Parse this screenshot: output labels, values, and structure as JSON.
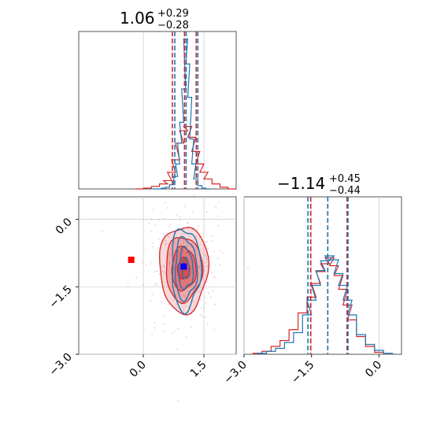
{
  "chart_data": {
    "type": "corner",
    "colors": {
      "series_a": "#1f77b4",
      "series_b": "#d62728",
      "marker_truth": "#0000ff",
      "marker_other": "#ff0000"
    },
    "series": [
      {
        "name": "",
        "color": "#1f77b4"
      },
      {
        "name": "",
        "color": "#d62728"
      }
    ],
    "panels": [
      {
        "id": "marginal-x",
        "type": "histogram",
        "title": {
          "main": "1.06",
          "sup": "+0.29",
          "sub": "−0.28"
        },
        "xlim": [
          -1.6,
          2.3
        ],
        "grid": true,
        "quantile_lines": {
          "series_a": [
            0.78,
            1.06,
            1.35
          ],
          "series_b": [
            0.72,
            1.02,
            1.31
          ]
        },
        "hist_series_a": {
          "x": [
            0.3,
            0.4,
            0.5,
            0.6,
            0.7,
            0.8,
            0.85,
            0.9,
            0.95,
            1.0,
            1.05,
            1.1,
            1.15,
            1.2,
            1.25,
            1.3,
            1.4,
            1.5,
            1.6
          ],
          "y": [
            0,
            0,
            1,
            2,
            5,
            15,
            30,
            55,
            80,
            120,
            180,
            150,
            110,
            60,
            30,
            12,
            4,
            1,
            0
          ]
        },
        "hist_series_b": {
          "x": [
            -0.1,
            0.1,
            0.3,
            0.5,
            0.6,
            0.7,
            0.8,
            0.9,
            1.0,
            1.1,
            1.2,
            1.3,
            1.4,
            1.5,
            1.6,
            1.8,
            2.0,
            2.2
          ],
          "y": [
            0,
            1,
            3,
            6,
            10,
            20,
            35,
            55,
            70,
            75,
            62,
            45,
            30,
            20,
            12,
            6,
            2,
            0
          ]
        }
      },
      {
        "id": "joint",
        "type": "contour",
        "xlim": [
          -1.6,
          2.3
        ],
        "ylim": [
          -3.0,
          0.5
        ],
        "xticks": [
          "0.0",
          "1.5"
        ],
        "yticks": [
          "0.0",
          "−1.5",
          "−3.0"
        ],
        "grid": true,
        "marker_truth": {
          "x": 1.0,
          "y": -1.05
        },
        "marker_other": {
          "x": -0.3,
          "y": -0.9
        },
        "contour_series_a": {
          "center_x": 1.05,
          "center_y": -1.1,
          "sd_x": 0.18,
          "sd_y": 0.45
        },
        "contour_series_b": {
          "center_x": 1.0,
          "center_y": -1.1,
          "sd_x": 0.3,
          "sd_y": 0.48
        }
      },
      {
        "id": "marginal-y",
        "type": "histogram",
        "title": {
          "main": "−1.14",
          "sup": "+0.45",
          "sub": "−0.44"
        },
        "xlim": [
          -3.0,
          0.5
        ],
        "xticks": [
          "−3.0",
          "−1.5",
          "0.0"
        ],
        "grid": true,
        "quantile_lines": {
          "series_a": [
            -1.58,
            -1.14,
            -0.69
          ],
          "series_b": [
            -1.52,
            -1.14,
            -0.71
          ]
        },
        "hist_series_a": {
          "x": [
            -2.6,
            -2.4,
            -2.2,
            -2.0,
            -1.8,
            -1.6,
            -1.5,
            -1.4,
            -1.3,
            -1.2,
            -1.1,
            -1.0,
            -0.9,
            -0.8,
            -0.7,
            -0.6,
            -0.4,
            -0.2,
            0.0,
            0.2
          ],
          "y": [
            1,
            3,
            6,
            12,
            22,
            40,
            55,
            70,
            85,
            95,
            100,
            96,
            82,
            70,
            55,
            40,
            20,
            10,
            4,
            1
          ]
        },
        "hist_series_b": {
          "x": [
            -2.7,
            -2.5,
            -2.3,
            -2.1,
            -1.9,
            -1.7,
            -1.5,
            -1.4,
            -1.3,
            -1.2,
            -1.1,
            -1.0,
            -0.9,
            -0.8,
            -0.7,
            -0.6,
            -0.4,
            -0.2,
            0.0
          ],
          "y": [
            1,
            3,
            8,
            14,
            25,
            42,
            58,
            72,
            84,
            92,
            98,
            90,
            80,
            66,
            50,
            35,
            18,
            8,
            2
          ]
        }
      }
    ]
  }
}
